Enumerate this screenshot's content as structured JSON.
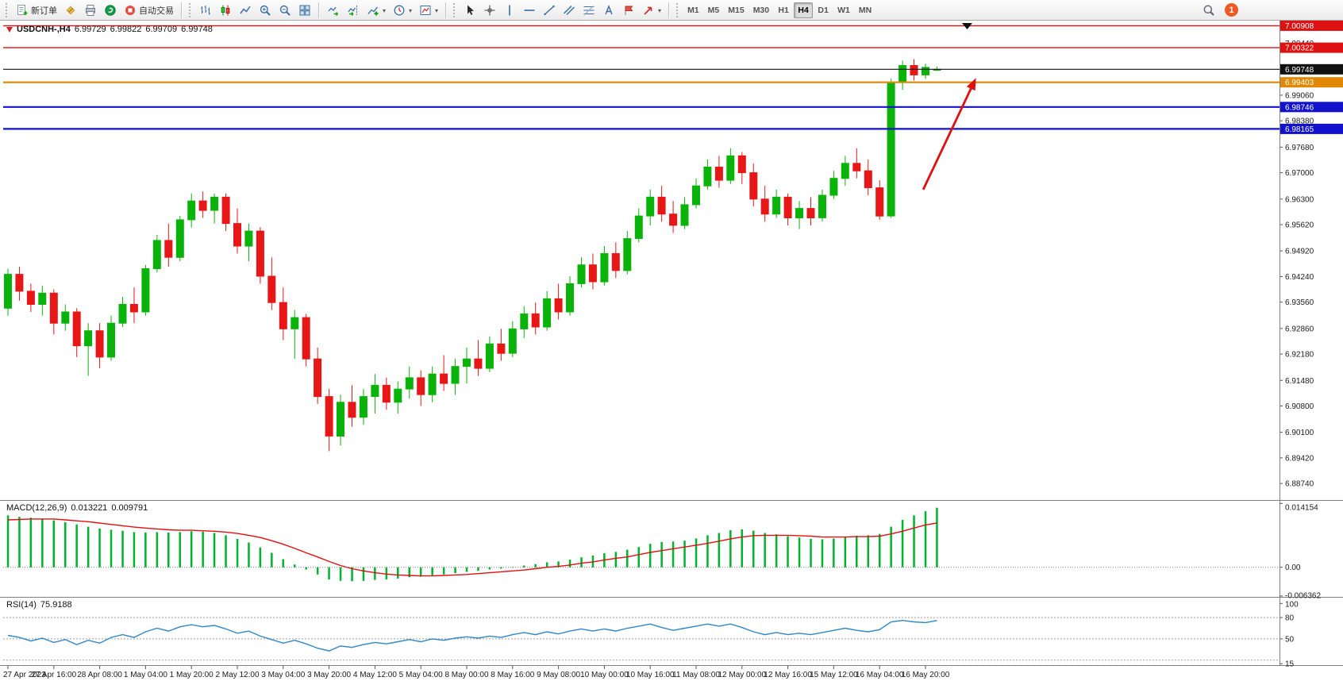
{
  "toolbar": {
    "new_order_label": "新订单",
    "autotrading_label": "自动交易",
    "timeframes": [
      "M1",
      "M5",
      "M15",
      "M30",
      "H1",
      "H4",
      "D1",
      "W1",
      "MN"
    ],
    "active_timeframe": "H4",
    "notification_count": "1"
  },
  "title": {
    "symbol": "USDCNH-,H4",
    "open": "6.99729",
    "high": "6.99822",
    "low": "6.99709",
    "close": "6.99748"
  },
  "indicators": {
    "macd": {
      "name": "MACD(12,26,9)",
      "value_main": "0.013221",
      "value_signal": "0.009791"
    },
    "rsi": {
      "name": "RSI(14)",
      "value": "75.9188"
    }
  },
  "chart_data": [
    {
      "type": "candlestick",
      "symbol": "USDCNH",
      "period": "H4",
      "up_color": "#0ab30a",
      "down_color": "#e81717",
      "ylim": [
        6.883,
        7.01
      ],
      "y_tick_labels": [
        "7.00440",
        "6.99740",
        "6.99060",
        "6.98380",
        "6.97680",
        "6.97000",
        "6.96300",
        "6.95620",
        "6.94920",
        "6.94240",
        "6.93560",
        "6.92860",
        "6.92180",
        "6.91480",
        "6.90800",
        "6.90100",
        "6.89420",
        "6.88740"
      ],
      "x_tick_labels": [
        "27 Apr 2023",
        "27 Apr 16:00",
        "28 Apr 08:00",
        "1 May 04:00",
        "1 May 20:00",
        "2 May 12:00",
        "3 May 04:00",
        "3 May 20:00",
        "4 May 12:00",
        "5 May 04:00",
        "8 May 00:00",
        "8 May 16:00",
        "9 May 08:00",
        "10 May 00:00",
        "10 May 16:00",
        "11 May 08:00",
        "12 May 00:00",
        "12 May 16:00",
        "15 May 12:00",
        "16 May 04:00",
        "16 May 20:00"
      ],
      "bars_per_tick": 4,
      "horizontal_lines": [
        {
          "price": 7.00908,
          "label": "7.00908",
          "color": "#dd1111",
          "width": 1.4
        },
        {
          "price": 7.00322,
          "label": "7.00322",
          "color": "#dd1111",
          "width": 1.4
        },
        {
          "price": 6.99748,
          "label": "6.99748",
          "color": "#111111",
          "width": 1.1
        },
        {
          "price": 6.99403,
          "label": "6.99403",
          "color": "#e08800",
          "width": 2.2
        },
        {
          "price": 6.98746,
          "label": "6.98746",
          "color": "#1212cc",
          "width": 2.2
        },
        {
          "price": 6.98165,
          "label": "6.98165",
          "color": "#1212cc",
          "width": 2.2
        }
      ],
      "arrow": {
        "from_bar": 79.8,
        "from_price": 6.9655,
        "to_bar": 84.4,
        "to_price": 6.9952,
        "color": "#e01010"
      },
      "ohlc": [
        [
          6.934,
          6.9445,
          6.932,
          6.943
        ],
        [
          6.943,
          6.945,
          6.936,
          6.9385
        ],
        [
          6.9385,
          6.9405,
          6.933,
          6.935
        ],
        [
          6.935,
          6.94,
          6.932,
          6.938
        ],
        [
          6.938,
          6.939,
          6.927,
          6.93
        ],
        [
          6.93,
          6.935,
          6.928,
          6.933
        ],
        [
          6.933,
          6.934,
          6.921,
          6.924
        ],
        [
          6.924,
          6.93,
          6.916,
          6.928
        ],
        [
          6.928,
          6.93,
          6.918,
          6.921
        ],
        [
          6.921,
          6.932,
          6.92,
          6.93
        ],
        [
          6.93,
          6.937,
          6.929,
          6.935
        ],
        [
          6.935,
          6.9395,
          6.93,
          6.933
        ],
        [
          6.933,
          6.9455,
          6.932,
          6.9445
        ],
        [
          6.9445,
          6.9535,
          6.9435,
          6.952
        ],
        [
          6.952,
          6.9565,
          6.945,
          6.9475
        ],
        [
          6.9475,
          6.9585,
          6.9465,
          6.9575
        ],
        [
          6.9575,
          6.9645,
          6.9555,
          6.9625
        ],
        [
          6.9625,
          6.965,
          6.958,
          6.96
        ],
        [
          6.96,
          6.9645,
          6.9565,
          6.9635
        ],
        [
          6.9635,
          6.9645,
          6.9545,
          6.9565
        ],
        [
          6.9565,
          6.9605,
          6.9485,
          6.9505
        ],
        [
          6.9505,
          6.9565,
          6.9465,
          6.9545
        ],
        [
          6.9545,
          6.9555,
          6.9405,
          6.9425
        ],
        [
          6.9425,
          6.9475,
          6.9335,
          6.9355
        ],
        [
          6.9355,
          6.9395,
          6.9255,
          6.9285
        ],
        [
          6.9285,
          6.9335,
          6.9205,
          6.9315
        ],
        [
          6.9315,
          6.9325,
          6.9185,
          6.9205
        ],
        [
          6.9205,
          6.9235,
          6.9085,
          6.9105
        ],
        [
          6.9105,
          6.9125,
          6.896,
          6.9
        ],
        [
          6.9,
          6.911,
          6.8975,
          6.909
        ],
        [
          6.909,
          6.9135,
          6.9025,
          6.905
        ],
        [
          6.905,
          6.9125,
          6.903,
          6.9105
        ],
        [
          6.9105,
          6.9165,
          6.906,
          6.9135
        ],
        [
          6.9135,
          6.9155,
          6.907,
          6.909
        ],
        [
          6.909,
          6.9145,
          6.906,
          6.9125
        ],
        [
          6.9125,
          6.9185,
          6.91,
          6.9155
        ],
        [
          6.9155,
          6.9175,
          6.908,
          6.911
        ],
        [
          6.911,
          6.9185,
          6.909,
          6.9165
        ],
        [
          6.9165,
          6.9215,
          6.912,
          6.914
        ],
        [
          6.914,
          6.9205,
          6.911,
          6.9185
        ],
        [
          6.9185,
          6.9235,
          6.914,
          6.9205
        ],
        [
          6.9205,
          6.9255,
          6.916,
          6.918
        ],
        [
          6.918,
          6.9265,
          6.917,
          6.9245
        ],
        [
          6.9245,
          6.9285,
          6.92,
          6.922
        ],
        [
          6.922,
          6.9305,
          6.921,
          6.9285
        ],
        [
          6.9285,
          6.9345,
          6.926,
          6.9325
        ],
        [
          6.9325,
          6.9355,
          6.927,
          6.929
        ],
        [
          6.929,
          6.9385,
          6.928,
          6.9365
        ],
        [
          6.9365,
          6.9405,
          6.931,
          6.933
        ],
        [
          6.933,
          6.9425,
          6.932,
          6.9405
        ],
        [
          6.9405,
          6.9475,
          6.9395,
          6.9455
        ],
        [
          6.9455,
          6.9485,
          6.939,
          6.941
        ],
        [
          6.941,
          6.9505,
          6.94,
          6.9485
        ],
        [
          6.9485,
          6.9515,
          6.942,
          6.944
        ],
        [
          6.944,
          6.9545,
          6.943,
          6.9525
        ],
        [
          6.9525,
          6.9605,
          6.9515,
          6.9585
        ],
        [
          6.9585,
          6.9655,
          6.956,
          6.9635
        ],
        [
          6.9635,
          6.9665,
          6.957,
          6.959
        ],
        [
          6.959,
          6.9625,
          6.954,
          6.956
        ],
        [
          6.956,
          6.9635,
          6.955,
          6.9615
        ],
        [
          6.9615,
          6.9685,
          6.9605,
          6.9665
        ],
        [
          6.9665,
          6.9735,
          6.9655,
          6.9715
        ],
        [
          6.9715,
          6.9745,
          6.966,
          6.968
        ],
        [
          6.968,
          6.9765,
          6.967,
          6.9745
        ],
        [
          6.9745,
          6.9755,
          6.967,
          6.97
        ],
        [
          6.97,
          6.9725,
          6.961,
          6.963
        ],
        [
          6.963,
          6.9665,
          6.957,
          6.959
        ],
        [
          6.959,
          6.9655,
          6.958,
          6.9635
        ],
        [
          6.9635,
          6.9645,
          6.956,
          6.958
        ],
        [
          6.958,
          6.9625,
          6.955,
          6.9605
        ],
        [
          6.9605,
          6.9635,
          6.956,
          6.958
        ],
        [
          6.958,
          6.9655,
          6.957,
          6.964
        ],
        [
          6.964,
          6.9705,
          6.963,
          6.9685
        ],
        [
          6.9685,
          6.9745,
          6.9665,
          6.9725
        ],
        [
          6.9725,
          6.9765,
          6.9685,
          6.9705
        ],
        [
          6.9705,
          6.9735,
          6.964,
          6.966
        ],
        [
          6.966,
          6.968,
          6.9575,
          6.9585
        ],
        [
          6.9585,
          6.995,
          6.958,
          6.994
        ],
        [
          6.994,
          6.9998,
          6.992,
          6.9985
        ],
        [
          6.9985,
          7.0002,
          6.9945,
          6.996
        ],
        [
          6.996,
          6.999,
          6.995,
          6.998
        ],
        [
          6.99729,
          6.99822,
          6.99709,
          6.99748
        ]
      ]
    },
    {
      "type": "bar",
      "title": "MACD(12,26,9)",
      "ylim": [
        -0.00655,
        0.01455
      ],
      "bar_color": "#00b22d",
      "scale_labels": [
        {
          "value": 0.014154,
          "label": "0.014154"
        },
        {
          "value": 0,
          "label": "0.00"
        },
        {
          "value": -0.006362,
          "label": "-0.006362"
        }
      ],
      "values": [
        0.0115,
        0.0112,
        0.011,
        0.0107,
        0.0104,
        0.01,
        0.0095,
        0.009,
        0.0086,
        0.0083,
        0.0081,
        0.0078,
        0.0077,
        0.0078,
        0.0077,
        0.0078,
        0.008,
        0.0079,
        0.0076,
        0.0071,
        0.0063,
        0.0055,
        0.0044,
        0.0032,
        0.0018,
        0.0006,
        -0.0005,
        -0.0016,
        -0.0027,
        -0.003,
        -0.0031,
        -0.003,
        -0.0028,
        -0.0027,
        -0.0025,
        -0.0022,
        -0.0021,
        -0.0018,
        -0.0016,
        -0.0013,
        -0.001,
        -0.0008,
        -0.0005,
        -0.0003,
        0.0,
        0.0004,
        0.0007,
        0.0011,
        0.0013,
        0.0017,
        0.0022,
        0.0026,
        0.0031,
        0.0034,
        0.0039,
        0.0045,
        0.0052,
        0.0056,
        0.0057,
        0.0059,
        0.0064,
        0.0071,
        0.0076,
        0.0082,
        0.0084,
        0.0081,
        0.0076,
        0.0073,
        0.0069,
        0.0066,
        0.0063,
        0.0062,
        0.0064,
        0.0068,
        0.007,
        0.0071,
        0.0074,
        0.009,
        0.0105,
        0.0115,
        0.0124,
        0.0132
      ],
      "signal": {
        "name": "signal",
        "color": "#e01010",
        "values": [
          0.0105,
          0.0106,
          0.0107,
          0.0107,
          0.0107,
          0.0105,
          0.0103,
          0.0101,
          0.0098,
          0.0095,
          0.0092,
          0.0089,
          0.0087,
          0.0085,
          0.0083,
          0.0082,
          0.0082,
          0.0081,
          0.008,
          0.0078,
          0.0075,
          0.0071,
          0.0066,
          0.0059,
          0.0051,
          0.0042,
          0.0032,
          0.0023,
          0.0013,
          0.0004,
          -0.0003,
          -0.0008,
          -0.0012,
          -0.0015,
          -0.0017,
          -0.0018,
          -0.0019,
          -0.0019,
          -0.0018,
          -0.0017,
          -0.0016,
          -0.0014,
          -0.0012,
          -0.001,
          -0.0008,
          -0.0006,
          -0.0003,
          0.0,
          0.0002,
          0.0005,
          0.0009,
          0.0012,
          0.0016,
          0.002,
          0.0023,
          0.0028,
          0.0033,
          0.0037,
          0.0041,
          0.0045,
          0.0049,
          0.0053,
          0.0058,
          0.0063,
          0.0067,
          0.007,
          0.0071,
          0.0071,
          0.0071,
          0.007,
          0.0069,
          0.0067,
          0.0067,
          0.0067,
          0.0068,
          0.0068,
          0.0069,
          0.0074,
          0.008,
          0.0087,
          0.0094,
          0.0098
        ]
      }
    },
    {
      "type": "line",
      "title": "RSI(14)",
      "ylim": [
        13,
        107
      ],
      "line_color": "#2f86c8",
      "levels": [
        80,
        50,
        20
      ],
      "scale_labels": [
        {
          "value": 100,
          "label": "100"
        },
        {
          "value": 80,
          "label": "80"
        },
        {
          "value": 50,
          "label": "50"
        },
        {
          "value": 15,
          "label": "15"
        }
      ],
      "values": [
        55,
        52,
        47,
        51,
        45,
        49,
        42,
        48,
        44,
        52,
        56,
        52,
        60,
        65,
        61,
        67,
        70,
        67,
        69,
        64,
        58,
        61,
        54,
        49,
        44,
        48,
        43,
        37,
        33,
        40,
        38,
        42,
        45,
        43,
        46,
        49,
        46,
        50,
        48,
        51,
        53,
        51,
        54,
        52,
        56,
        59,
        56,
        60,
        57,
        61,
        64,
        61,
        64,
        61,
        65,
        68,
        71,
        66,
        62,
        65,
        68,
        71,
        68,
        71,
        66,
        60,
        56,
        59,
        56,
        58,
        56,
        59,
        62,
        65,
        62,
        60,
        63,
        74,
        76,
        74,
        73,
        75.9
      ]
    }
  ]
}
